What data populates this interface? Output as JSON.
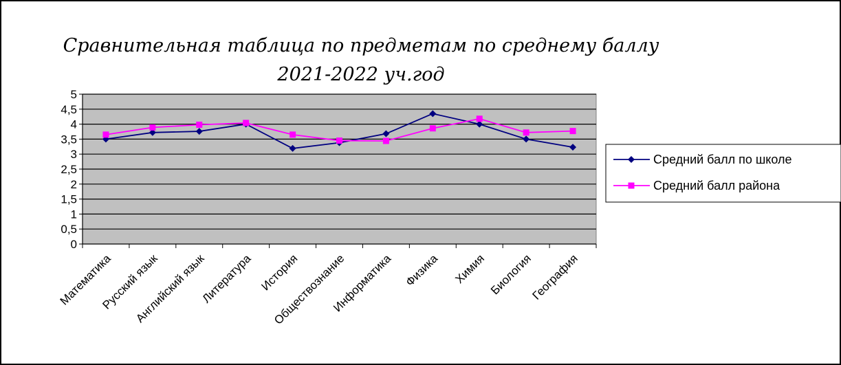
{
  "chart_data": {
    "type": "line",
    "title": "Сравнительная таблица по предметам по среднему баллу",
    "subtitle": "2021-2022 уч.год",
    "xlabel": "",
    "ylabel": "",
    "ylim": [
      0,
      5
    ],
    "yticks": [
      "0",
      "0,5",
      "1",
      "1,5",
      "2",
      "2,5",
      "3",
      "3,5",
      "4",
      "4,5",
      "5"
    ],
    "grid": true,
    "legend_position": "right",
    "plot_background": "#c0c0c0",
    "categories": [
      "Математика",
      "Русский язык",
      "Английский язык",
      "Литература",
      "История",
      "Обществознание",
      "Информатика",
      "Физика",
      "Химия",
      "Биология",
      "География"
    ],
    "series": [
      {
        "name": "Средний балл по школе",
        "color": "#000080",
        "marker": "diamond",
        "values": [
          3.5,
          3.72,
          3.76,
          4.0,
          3.19,
          3.38,
          3.68,
          4.35,
          4.0,
          3.5,
          3.23
        ]
      },
      {
        "name": "Средний балл района",
        "color": "#ff00ff",
        "marker": "square",
        "values": [
          3.65,
          3.89,
          3.98,
          4.04,
          3.65,
          3.45,
          3.44,
          3.86,
          4.18,
          3.72,
          3.77
        ]
      }
    ]
  }
}
